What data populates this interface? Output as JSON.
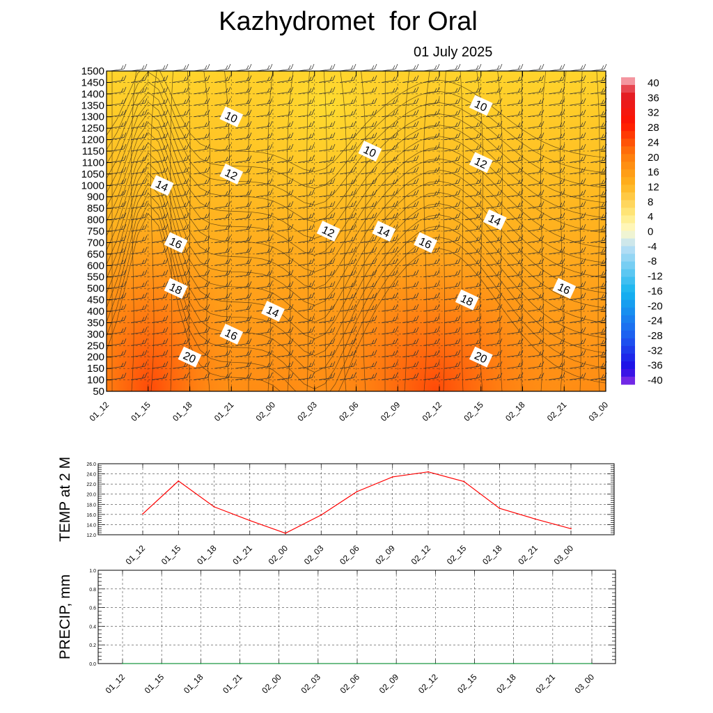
{
  "page": {
    "title": "Kazhydromet  for Oral",
    "subtitle": "01 July 2025"
  },
  "chart_data": [
    {
      "type": "heatmap",
      "x_ticks": [
        "01_12",
        "01_15",
        "01_18",
        "01_21",
        "02_00",
        "02_03",
        "02_06",
        "02_09",
        "02_12",
        "02_15",
        "02_18",
        "02_21",
        "03_00"
      ],
      "y_ticks": [
        50,
        100,
        150,
        200,
        250,
        300,
        350,
        400,
        450,
        500,
        550,
        600,
        650,
        700,
        750,
        800,
        850,
        900,
        1000,
        1050,
        1100,
        1150,
        1200,
        1250,
        1300,
        1350,
        1400,
        1450,
        1500
      ],
      "ylim": [
        50,
        1500
      ],
      "grid": true,
      "colorbar": {
        "labels": [
          "40",
          "36",
          "32",
          "28",
          "24",
          "20",
          "16",
          "12",
          "8",
          "4",
          "0",
          "-4",
          "-8",
          "-12",
          "-16",
          "-20",
          "-24",
          "-28",
          "-32",
          "-36",
          "-40"
        ],
        "range": [
          -40,
          40
        ]
      },
      "contour_labels": [
        {
          "text": "10",
          "x": "01_21",
          "y": 1300
        },
        {
          "text": "10",
          "x": "02_07",
          "y": 1150
        },
        {
          "text": "10",
          "x": "02_15",
          "y": 1350
        },
        {
          "text": "12",
          "x": "01_21",
          "y": 1050
        },
        {
          "text": "12",
          "x": "02_04",
          "y": 750
        },
        {
          "text": "12",
          "x": "02_15",
          "y": 1100
        },
        {
          "text": "14",
          "x": "01_16",
          "y": 1000
        },
        {
          "text": "14",
          "x": "02_08",
          "y": 750
        },
        {
          "text": "14",
          "x": "02_16",
          "y": 800
        },
        {
          "text": "14",
          "x": "02_00",
          "y": 400
        },
        {
          "text": "16",
          "x": "01_17",
          "y": 700
        },
        {
          "text": "16",
          "x": "02_11",
          "y": 700
        },
        {
          "text": "16",
          "x": "02_21",
          "y": 500
        },
        {
          "text": "16",
          "x": "01_21",
          "y": 300
        },
        {
          "text": "18",
          "x": "01_17",
          "y": 500
        },
        {
          "text": "18",
          "x": "02_14",
          "y": 450
        },
        {
          "text": "20",
          "x": "01_18",
          "y": 200
        },
        {
          "text": "20",
          "x": "02_15",
          "y": 200
        }
      ]
    },
    {
      "type": "line",
      "ylabel": "TEMP at 2 M",
      "categories": [
        "01_12",
        "01_15",
        "01_18",
        "01_21",
        "02_00",
        "02_03",
        "02_06",
        "02_09",
        "02_12",
        "02_15",
        "02_18",
        "02_21",
        "03_00"
      ],
      "series": [
        {
          "values": [
            16.1,
            22.6,
            17.5,
            14.8,
            12.3,
            15.9,
            20.5,
            23.4,
            24.4,
            22.5,
            17.2,
            15.1,
            13.2
          ]
        }
      ],
      "y_ticks": [
        "12.0",
        "14.0",
        "16.0",
        "18.0",
        "20.0",
        "22.0",
        "24.0",
        "26.0"
      ],
      "ylim": [
        12,
        26
      ],
      "grid": true,
      "line_color": "#ff0000"
    },
    {
      "type": "line",
      "ylabel": "PRECIP, mm",
      "categories": [
        "01_12",
        "01_15",
        "01_18",
        "01_21",
        "02_00",
        "02_03",
        "02_06",
        "02_09",
        "02_12",
        "02_15",
        "02_18",
        "02_21",
        "03_00"
      ],
      "series": [
        {
          "values": [
            0,
            0,
            0,
            0,
            0,
            0,
            0,
            0,
            0,
            0,
            0,
            0,
            0
          ]
        }
      ],
      "y_ticks": [
        "0.0",
        "0.2",
        "0.4",
        "0.6",
        "0.8",
        "1.0"
      ],
      "ylim": [
        0,
        1
      ],
      "grid": true,
      "line_color": "#1a9641"
    }
  ]
}
